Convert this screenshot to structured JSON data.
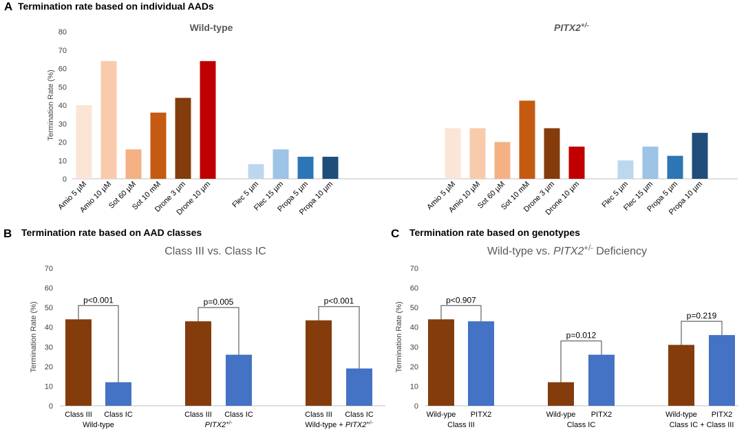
{
  "chart_data": [
    {
      "panel": "A",
      "type": "bar",
      "title": "Termination rate based on individual AADs",
      "ylabel": "Termination Rate (%)",
      "ylim": [
        0,
        80
      ],
      "yticks": [
        0,
        10,
        20,
        30,
        40,
        50,
        60,
        70,
        80
      ],
      "subtitles": [
        "Wild-type",
        "PITX2",
        "+/-"
      ],
      "groups": [
        {
          "name": "Wild-type",
          "bars": [
            {
              "label": "Amio 5 µM",
              "value": 40,
              "color": "#FBE5D6"
            },
            {
              "label": "Amio 10 µM",
              "value": 64,
              "color": "#F8CBAD"
            },
            {
              "label": "Sot 60 µM",
              "value": 16,
              "color": "#F4B183"
            },
            {
              "label": "Sot 10 mM",
              "value": 36,
              "color": "#C55A11"
            },
            {
              "label": "Drone 3 µm",
              "value": 44,
              "color": "#843C0C"
            },
            {
              "label": "Drone 10 µm",
              "value": 64,
              "color": "#C00000"
            },
            {
              "label": "Flec 5 µm",
              "value": 8,
              "color": "#BDD7EE"
            },
            {
              "label": "Flec 15 µm",
              "value": 16,
              "color": "#9DC3E6"
            },
            {
              "label": "Propa 5 µm",
              "value": 12,
              "color": "#2E75B6"
            },
            {
              "label": "Propa 10 µm",
              "value": 12,
              "color": "#1F4E79"
            }
          ]
        },
        {
          "name": "PITX2+/-",
          "bars": [
            {
              "label": "Amio 5 µM",
              "value": 27.5,
              "color": "#FBE5D6"
            },
            {
              "label": "Amio 10 µM",
              "value": 27.5,
              "color": "#F8CBAD"
            },
            {
              "label": "Sot 60 µM",
              "value": 20,
              "color": "#F4B183"
            },
            {
              "label": "Sot 10 mM",
              "value": 42.5,
              "color": "#C55A11"
            },
            {
              "label": "Drone 3 µm",
              "value": 27.5,
              "color": "#843C0C"
            },
            {
              "label": "Drone 10 µm",
              "value": 17.5,
              "color": "#C00000"
            },
            {
              "label": "Flec 5 µm",
              "value": 10,
              "color": "#BDD7EE"
            },
            {
              "label": "Flec 15 µm",
              "value": 17.5,
              "color": "#9DC3E6"
            },
            {
              "label": "Propa 5 µm",
              "value": 12.5,
              "color": "#2E75B6"
            },
            {
              "label": "Propa 10 µm",
              "value": 25,
              "color": "#1F4E79"
            }
          ]
        }
      ]
    },
    {
      "panel": "B",
      "type": "bar",
      "title": "Termination rate based on AAD classes",
      "subtitle": "Class III vs. Class IC",
      "ylabel": "Termination Rate (%)",
      "ylim": [
        0,
        70
      ],
      "yticks": [
        0,
        10,
        20,
        30,
        40,
        50,
        60,
        70
      ],
      "groups": [
        {
          "group_label": "Wild-type",
          "group_sup": "",
          "bars": [
            {
              "label": "Class III",
              "value": 44,
              "color": "#843C0C"
            },
            {
              "label": "Class IC",
              "value": 12,
              "color": "#4472C4"
            }
          ],
          "pvalue": "p<0.001"
        },
        {
          "group_label": "PITX2",
          "group_sup": "+/-",
          "bars": [
            {
              "label": "Class III",
              "value": 43,
              "color": "#843C0C"
            },
            {
              "label": "Class IC",
              "value": 26,
              "color": "#4472C4"
            }
          ],
          "pvalue": "p=0.005"
        },
        {
          "group_label": "Wild-type + PITX2",
          "group_sup": "+/-",
          "bars": [
            {
              "label": "Class III",
              "value": 43.5,
              "color": "#843C0C"
            },
            {
              "label": "Class IC",
              "value": 19,
              "color": "#4472C4"
            }
          ],
          "pvalue": "p<0.001"
        }
      ]
    },
    {
      "panel": "C",
      "type": "bar",
      "title": "Termination rate based on genotypes",
      "subtitle": "Wild-type vs. PITX2",
      "subtitle_sup": "+/-",
      "subtitle_tail": " Deficiency",
      "ylabel": "Termination Rate (%)",
      "ylim": [
        0,
        70
      ],
      "yticks": [
        0,
        10,
        20,
        30,
        40,
        50,
        60,
        70
      ],
      "groups": [
        {
          "group_label": "Class III",
          "bars": [
            {
              "label": "Wild-ype",
              "value": 44,
              "color": "#843C0C"
            },
            {
              "label": "PITX2",
              "value": 43,
              "color": "#4472C4"
            }
          ],
          "pvalue": "p<0.907"
        },
        {
          "group_label": "Class IC",
          "bars": [
            {
              "label": "Wild-ype",
              "value": 12,
              "color": "#843C0C"
            },
            {
              "label": "PITX2",
              "value": 26,
              "color": "#4472C4"
            }
          ],
          "pvalue": "p=0.012"
        },
        {
          "group_label": "Class IC + Class III",
          "bars": [
            {
              "label": "Wild-type",
              "value": 31,
              "color": "#843C0C"
            },
            {
              "label": "PITX2",
              "value": 36,
              "color": "#4472C4"
            }
          ],
          "pvalue": "p=0.219"
        }
      ]
    }
  ]
}
